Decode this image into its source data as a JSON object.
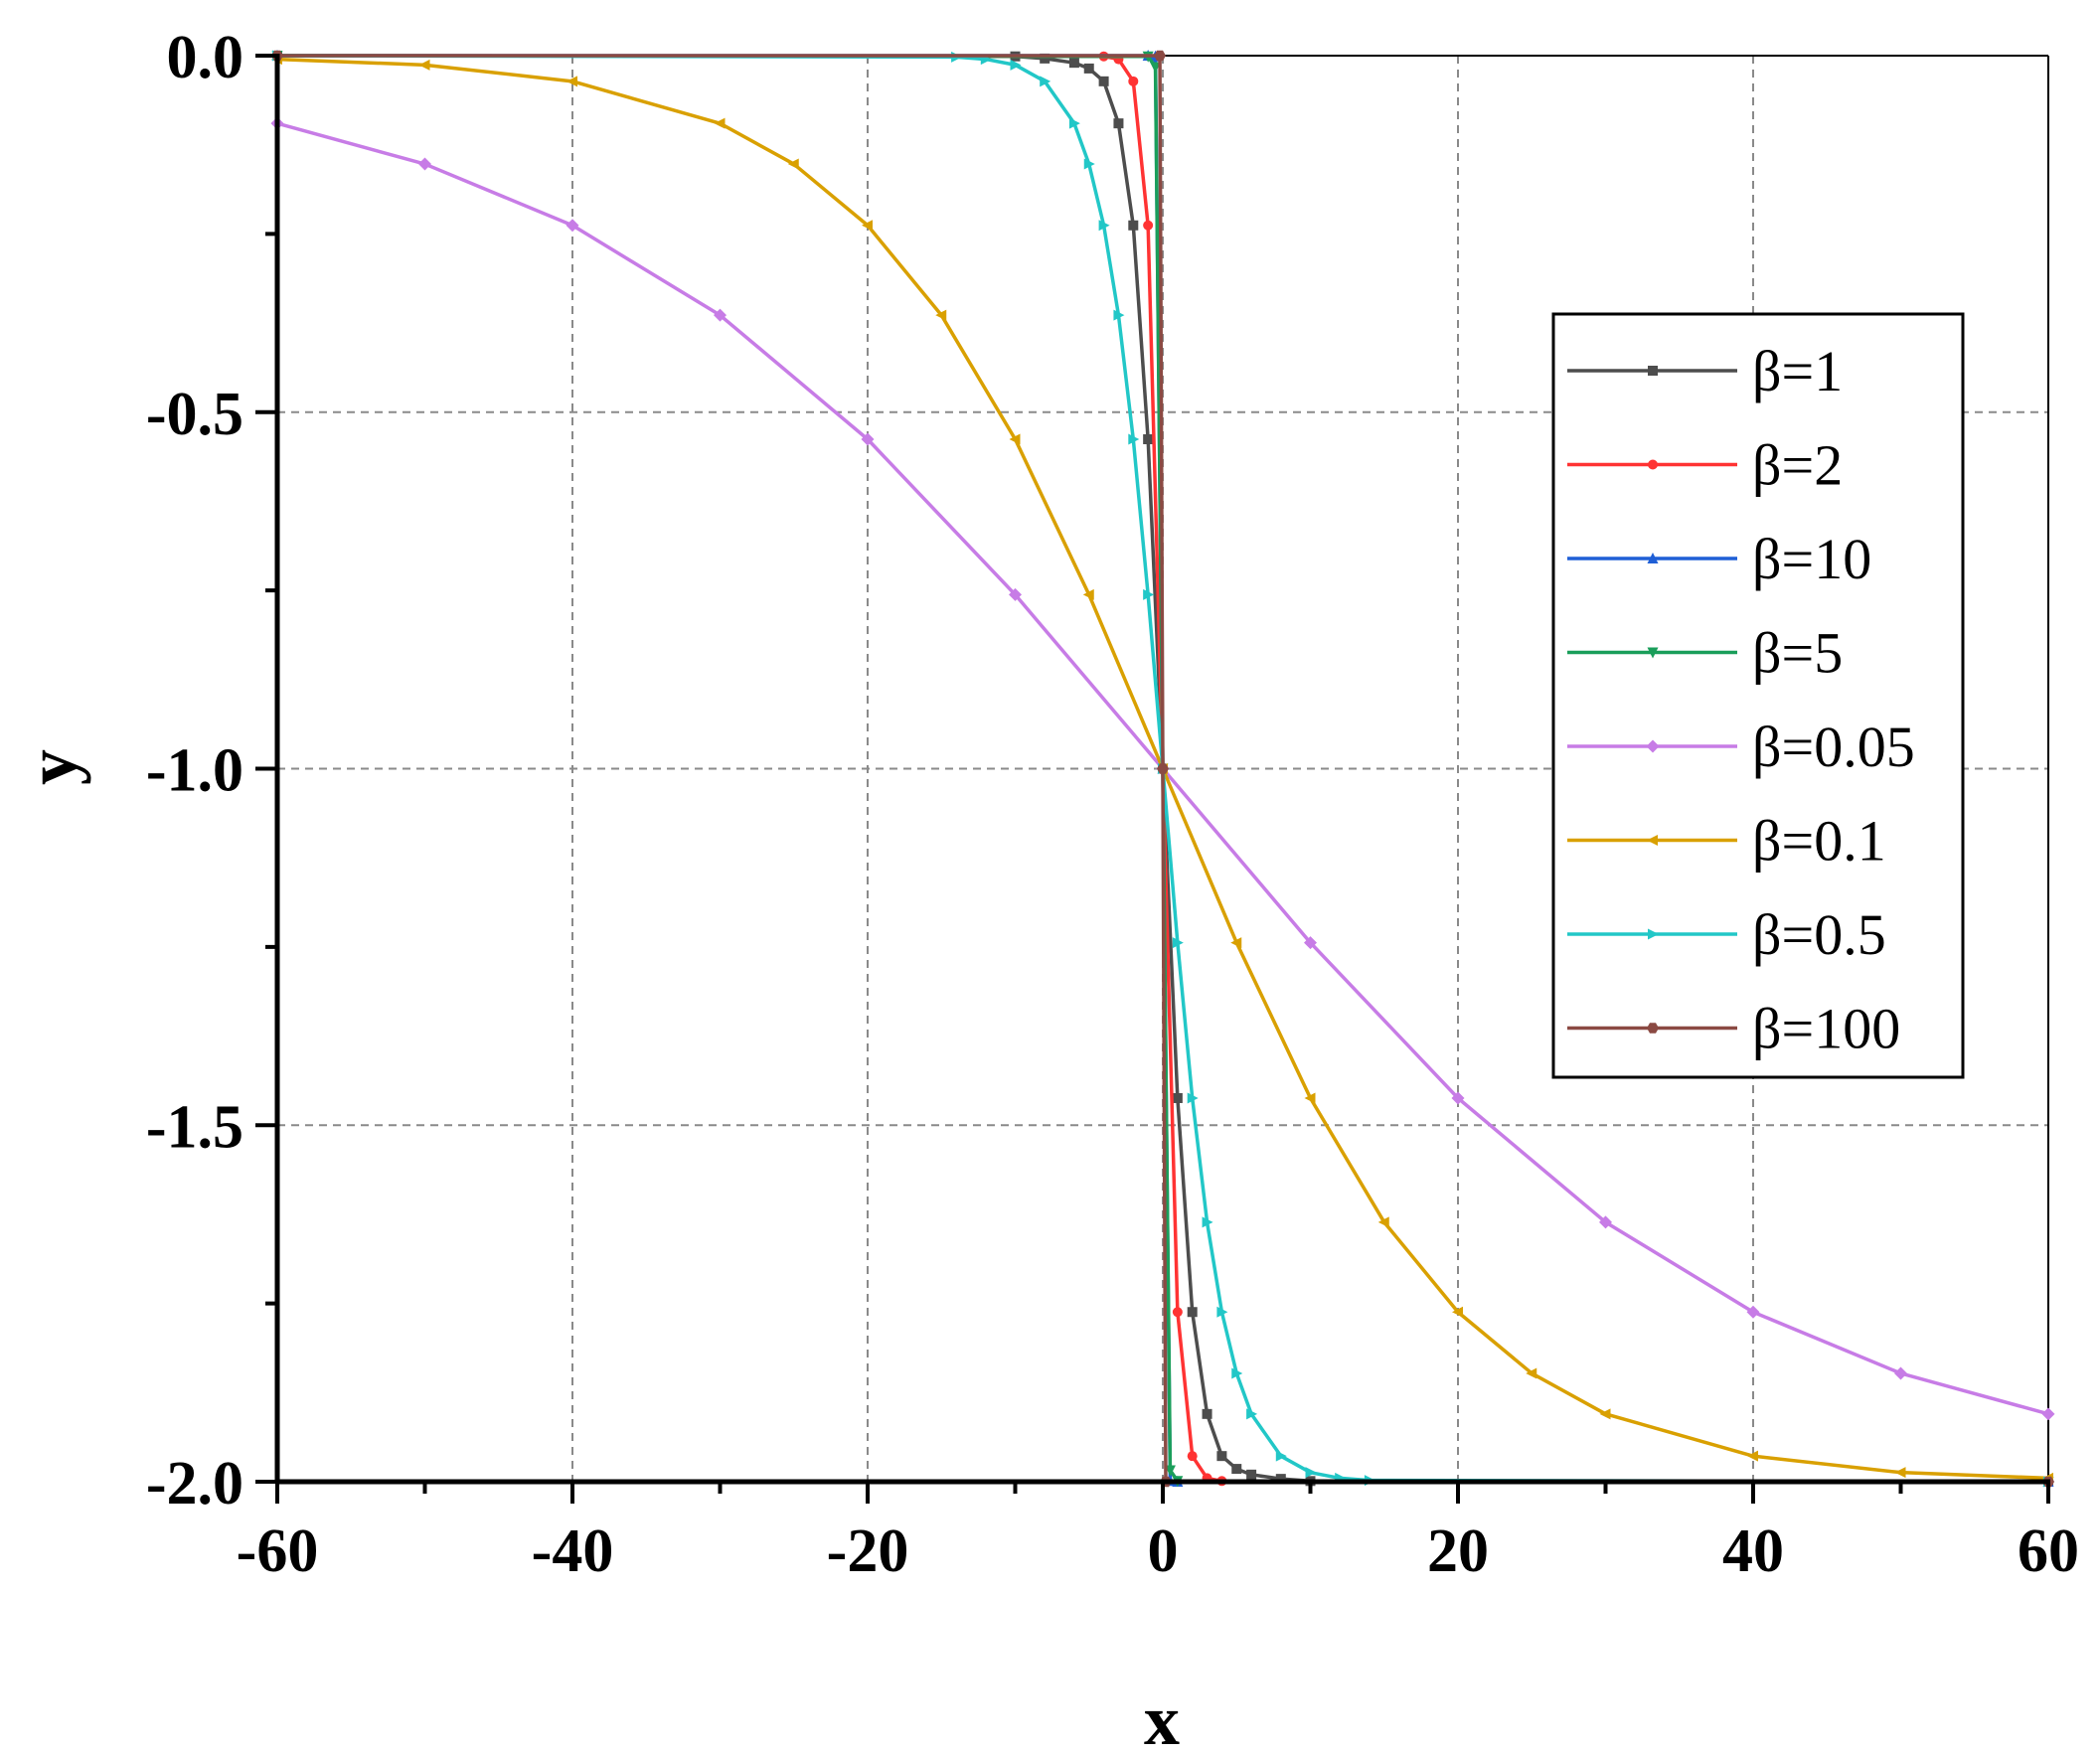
{
  "chart_data": {
    "type": "line",
    "title": "",
    "xlabel": "x",
    "ylabel": "y",
    "xlim": [
      -60,
      60
    ],
    "ylim": [
      -2.0,
      0.0
    ],
    "xticks": [
      -60,
      -40,
      -20,
      0,
      20,
      40,
      60
    ],
    "xtick_labels": [
      "-60",
      "-40",
      "-20",
      "0",
      "20",
      "40",
      "60"
    ],
    "yticks": [
      0.0,
      -0.5,
      -1.0,
      -1.5,
      -2.0
    ],
    "ytick_labels": [
      "0.0",
      "-0.5",
      "-1.0",
      "-1.5",
      "-2.0"
    ],
    "grid": true,
    "legend_position": "right",
    "series": [
      {
        "name": "β=1",
        "color": "#4d4d4d",
        "marker": "square",
        "x": [
          -60,
          -10,
          -8,
          -6,
          -5,
          -4,
          -3,
          -2,
          -1,
          0,
          1,
          2,
          3,
          4,
          5,
          6,
          8,
          10,
          60
        ],
        "y": [
          0,
          -0.001,
          -0.004,
          -0.01,
          -0.018,
          -0.036,
          -0.095,
          -0.238,
          -0.538,
          -1.0,
          -1.462,
          -1.762,
          -1.905,
          -1.964,
          -1.982,
          -1.99,
          -1.996,
          -1.999,
          -2.0
        ]
      },
      {
        "name": "β=2",
        "color": "#ff3333",
        "marker": "circle",
        "x": [
          -60,
          -4,
          -3,
          -2,
          -1,
          0,
          1,
          2,
          3,
          4,
          60
        ],
        "y": [
          0,
          -0.001,
          -0.005,
          -0.036,
          -0.238,
          -1.0,
          -1.762,
          -1.964,
          -1.995,
          -1.999,
          -2.0
        ]
      },
      {
        "name": "β=10",
        "color": "#1f5fd6",
        "marker": "triangle-up",
        "x": [
          -60,
          -1,
          -0.5,
          0,
          0.5,
          1,
          60
        ],
        "y": [
          0,
          0,
          -0.001,
          -1.0,
          -1.999,
          -2.0,
          -2.0
        ]
      },
      {
        "name": "β=5",
        "color": "#1a9e5a",
        "marker": "triangle-down",
        "x": [
          -60,
          -1,
          -0.5,
          0,
          0.5,
          1,
          60
        ],
        "y": [
          0,
          -0.001,
          -0.016,
          -1.0,
          -1.984,
          -1.999,
          -2.0
        ]
      },
      {
        "name": "β=0.05",
        "color": "#c77ce6",
        "marker": "diamond",
        "x": [
          -60,
          -50,
          -40,
          -30,
          -20,
          -10,
          0,
          10,
          20,
          30,
          40,
          50,
          60
        ],
        "y": [
          -0.095,
          -0.152,
          -0.238,
          -0.364,
          -0.538,
          -0.756,
          -1.0,
          -1.244,
          -1.462,
          -1.636,
          -1.762,
          -1.848,
          -1.905
        ]
      },
      {
        "name": "β=0.1",
        "color": "#d9a000",
        "marker": "triangle-left",
        "x": [
          -60,
          -50,
          -40,
          -30,
          -25,
          -20,
          -15,
          -10,
          -5,
          0,
          5,
          10,
          15,
          20,
          25,
          30,
          40,
          50,
          60
        ],
        "y": [
          -0.005,
          -0.013,
          -0.036,
          -0.095,
          -0.152,
          -0.238,
          -0.364,
          -0.538,
          -0.756,
          -1.0,
          -1.244,
          -1.462,
          -1.636,
          -1.762,
          -1.848,
          -1.905,
          -1.964,
          -1.987,
          -1.995
        ]
      },
      {
        "name": "β=0.5",
        "color": "#22c7c7",
        "marker": "triangle-right",
        "x": [
          -60,
          -14,
          -12,
          -10,
          -8,
          -6,
          -5,
          -4,
          -3,
          -2,
          -1,
          0,
          1,
          2,
          3,
          4,
          5,
          6,
          8,
          10,
          12,
          14,
          60
        ],
        "y": [
          0,
          -0.002,
          -0.005,
          -0.013,
          -0.036,
          -0.095,
          -0.152,
          -0.238,
          -0.364,
          -0.538,
          -0.756,
          -1.0,
          -1.244,
          -1.462,
          -1.636,
          -1.762,
          -1.848,
          -1.905,
          -1.964,
          -1.987,
          -1.995,
          -1.998,
          -2.0
        ]
      },
      {
        "name": "β=100",
        "color": "#8b4a43",
        "marker": "hexagon",
        "x": [
          -60,
          -0.2,
          0,
          0.2,
          60
        ],
        "y": [
          0,
          0,
          -1.0,
          -2.0,
          -2.0
        ]
      }
    ]
  }
}
